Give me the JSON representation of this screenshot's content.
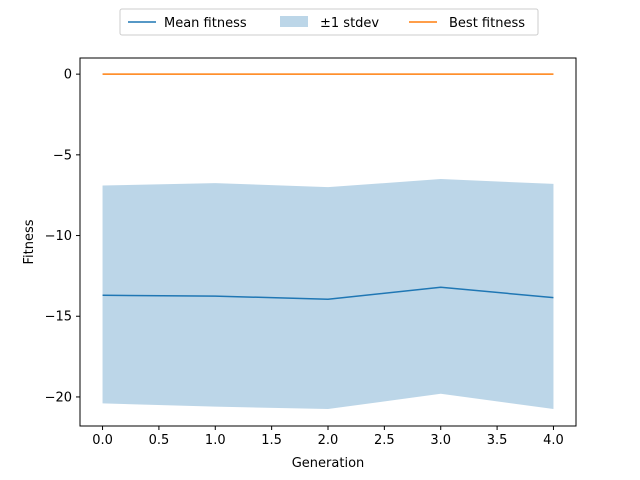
{
  "chart_data": {
    "type": "line",
    "title": "",
    "xlabel": "Generation",
    "ylabel": "Fitness",
    "x": [
      0,
      1,
      2,
      3,
      4
    ],
    "xlim": [
      -0.2,
      4.2
    ],
    "ylim": [
      -21.8,
      1.0
    ],
    "xticks": [
      0.0,
      0.5,
      1.0,
      1.5,
      2.0,
      2.5,
      3.0,
      3.5,
      4.0
    ],
    "xtick_labels": [
      "0.0",
      "0.5",
      "1.0",
      "1.5",
      "2.0",
      "2.5",
      "3.0",
      "3.5",
      "4.0"
    ],
    "yticks": [
      0,
      -5,
      -10,
      -15,
      -20
    ],
    "ytick_labels": [
      "0",
      "−5",
      "−10",
      "−15",
      "−20"
    ],
    "grid": false,
    "legend_position": "top-center, above plot",
    "series": [
      {
        "name": "Mean fitness",
        "kind": "line",
        "color": "#1f77b4",
        "values": [
          -13.7,
          -13.75,
          -13.95,
          -13.2,
          -13.85
        ]
      },
      {
        "name": "±1 stdev",
        "kind": "band",
        "color": "#a6c8e0",
        "upper": [
          -6.9,
          -6.75,
          -7.0,
          -6.5,
          -6.8
        ],
        "lower": [
          -20.4,
          -20.6,
          -20.75,
          -19.8,
          -20.75
        ]
      },
      {
        "name": "Best fitness",
        "kind": "line",
        "color": "#ff7f0e",
        "values": [
          0.0,
          0.0,
          0.0,
          0.0,
          0.0
        ]
      }
    ]
  }
}
